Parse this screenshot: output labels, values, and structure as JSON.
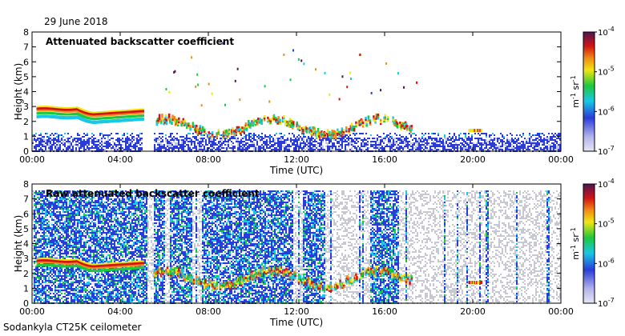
{
  "header": {
    "date": "29 June 2018"
  },
  "footer": {
    "instrument": "Sodankyla CT25K ceilometer"
  },
  "chart_data": [
    {
      "type": "heatmap",
      "title": "Attenuated backscatter coefficient",
      "xlabel": "Time (UTC)",
      "ylabel": "Height (km)",
      "x_ticks": [
        "00:00",
        "04:00",
        "08:00",
        "12:00",
        "16:00",
        "20:00",
        "00:00"
      ],
      "xlim_hours": [
        0,
        24
      ],
      "y_ticks": [
        "0",
        "1",
        "2",
        "3",
        "4",
        "5",
        "6",
        "7",
        "8"
      ],
      "ylim_km": [
        0,
        8
      ],
      "colorbar": {
        "scale": "log",
        "range": [
          1e-07,
          0.0001
        ],
        "tick_labels": [
          "10-7",
          "10-6",
          "10-5",
          "10-4"
        ],
        "unit": "m-1 sr-1",
        "colors": [
          "#e6e6f5",
          "#2a3cd8",
          "#19c8e6",
          "#1ec83c",
          "#f0e614",
          "#f08c14",
          "#d21414",
          "#501450"
        ]
      },
      "layers": [
        {
          "feature": "cloud layer",
          "time_hours": [
            0,
            5.0
          ],
          "height_km": [
            2.5,
            3.0
          ]
        },
        {
          "feature": "boundary layer aerosol",
          "time_hours": [
            0,
            24
          ],
          "height_km": [
            0,
            1.5
          ]
        }
      ]
    },
    {
      "type": "heatmap",
      "title": "Raw attenuated backscatter coefficient",
      "xlabel": "Time (UTC)",
      "ylabel": "Height (km)",
      "x_ticks": [
        "00:00",
        "04:00",
        "08:00",
        "12:00",
        "16:00",
        "20:00",
        "00:00"
      ],
      "xlim_hours": [
        0,
        24
      ],
      "y_ticks": [
        "0",
        "1",
        "2",
        "3",
        "4",
        "5",
        "6",
        "7",
        "8"
      ],
      "ylim_km": [
        0,
        8
      ],
      "colorbar": {
        "scale": "log",
        "range": [
          1e-07,
          0.0001
        ],
        "tick_labels": [
          "10-7",
          "10-6",
          "10-5",
          "10-4"
        ],
        "unit": "m-1 sr-1"
      },
      "layers": [
        {
          "feature": "cloud layer",
          "time_hours": [
            0,
            5.0
          ],
          "height_km": [
            2.5,
            3.0
          ]
        },
        {
          "feature": "noise columns",
          "time_hours": [
            0,
            24
          ],
          "height_km": [
            0,
            7.6
          ]
        }
      ]
    }
  ]
}
